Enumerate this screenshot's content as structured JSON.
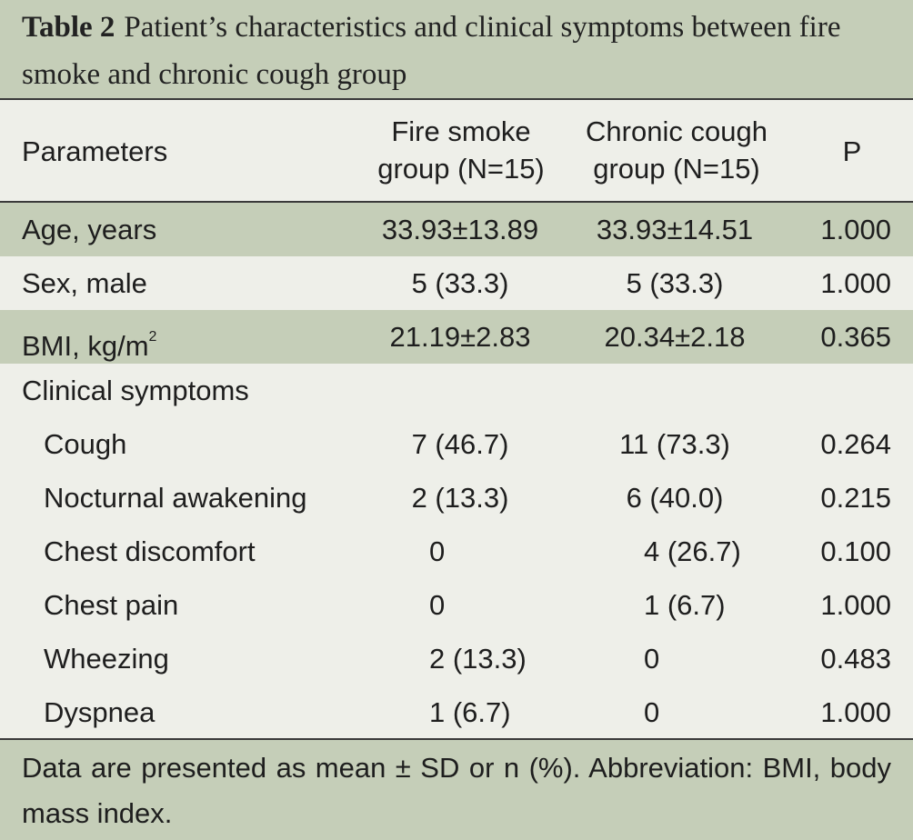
{
  "caption": {
    "label": "Table 2",
    "text": "Patient’s characteristics and clinical symptoms between fire smoke and chronic cough group"
  },
  "table": {
    "headers": {
      "parameters": "Parameters",
      "fire_line1": "Fire smoke",
      "fire_line2": "group (N=15)",
      "chronic_line1": "Chronic cough",
      "chronic_line2": "group (N=15)",
      "p": "P"
    },
    "rows": [
      {
        "param": "Age, years",
        "fire": "33.93±13.89",
        "chronic": "33.93±14.51",
        "p": "1.000"
      },
      {
        "param": "Sex, male",
        "fire": "5 (33.3)",
        "chronic": "5 (33.3)",
        "p": "1.000"
      },
      {
        "param": "BMI, kg/m",
        "param_sup": "2",
        "fire": "21.19±2.83",
        "chronic": "20.34±2.18",
        "p": "0.365"
      },
      {
        "param": "Clinical symptoms",
        "fire": "",
        "chronic": "",
        "p": ""
      },
      {
        "param": "Cough",
        "fire": "7 (46.7)",
        "chronic": "11 (73.3)",
        "p": "0.264"
      },
      {
        "param": "Nocturnal awakening",
        "fire": "2 (13.3)",
        "chronic": "6 (40.0)",
        "p": "0.215"
      },
      {
        "param": "Chest discomfort",
        "fire": "0",
        "chronic": "4 (26.7)",
        "p": "0.100"
      },
      {
        "param": "Chest pain",
        "fire": "0",
        "chronic": "1 (6.7)",
        "p": "1.000"
      },
      {
        "param": "Wheezing",
        "fire": "2 (13.3)",
        "chronic": "0",
        "p": "0.483"
      },
      {
        "param": "Dyspnea",
        "fire": "1 (6.7)",
        "chronic": "0",
        "p": "1.000"
      }
    ]
  },
  "footnote": "Data are presented as mean ± SD or n (%). Abbreviation: BMI, body mass index.",
  "colors": {
    "band": "#c5ceb8",
    "background": "#eeefe9",
    "rule": "#3a3a3a"
  }
}
